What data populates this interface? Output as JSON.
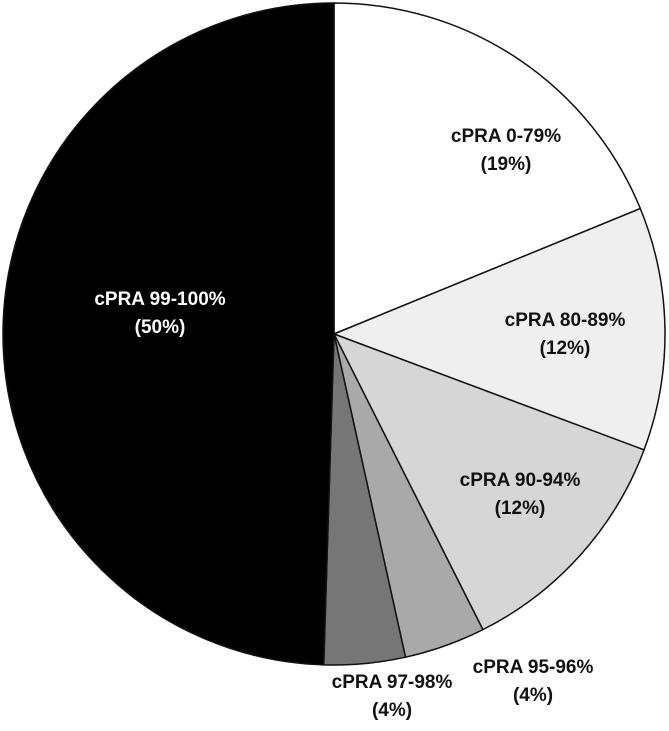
{
  "chart_data": {
    "type": "pie",
    "title": "",
    "slices": [
      {
        "label": "cPRA 0-79%",
        "pct_label": "(19%)",
        "value": 19,
        "color": "#ffffff",
        "text_color": "#111111"
      },
      {
        "label": "cPRA 80-89%",
        "pct_label": "(12%)",
        "value": 12,
        "color": "#efefef",
        "text_color": "#111111"
      },
      {
        "label": "cPRA 90-94%",
        "pct_label": "(12%)",
        "value": 12,
        "color": "#d6d6d6",
        "text_color": "#111111"
      },
      {
        "label": "cPRA 95-96%",
        "pct_label": "(4%)",
        "value": 4,
        "color": "#a9a9a9",
        "text_color": "#111111"
      },
      {
        "label": "cPRA 97-98%",
        "pct_label": "(4%)",
        "value": 4,
        "color": "#767676",
        "text_color": "#111111"
      },
      {
        "label": "cPRA 99-100%",
        "pct_label": "(50%)",
        "value": 50,
        "color": "#000000",
        "text_color": "#ffffff"
      }
    ]
  }
}
